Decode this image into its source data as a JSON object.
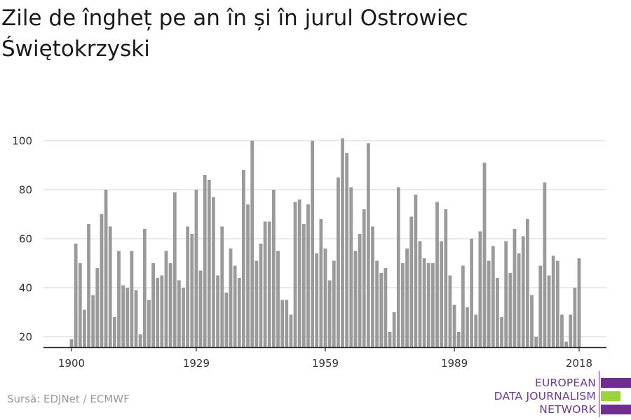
{
  "title": "Zile de îngheț pe an în și în jurul Ostrowiec Świętokrzyski",
  "source": "Sursă: EDJNet / ECMWF",
  "logo": {
    "line1": "EUROPEAN",
    "line2": "DATA JOURNALISM",
    "line3": "NETWORK"
  },
  "colors": {
    "bar": "#9a9a9a",
    "grid": "#dddddd",
    "axis": "#222222",
    "logo_purple": "#6f2c91",
    "logo_green": "#9cd33a"
  },
  "chart_data": {
    "type": "bar",
    "title": "Zile de îngheț pe an în și în jurul Ostrowiec Świętokrzyski",
    "xlabel": "",
    "ylabel": "",
    "ylim": [
      15,
      104
    ],
    "yticks": [
      20,
      40,
      60,
      80,
      100
    ],
    "xticks": [
      1900,
      1929,
      1959,
      1989,
      2018
    ],
    "grid": true,
    "x": [
      1900,
      1901,
      1902,
      1903,
      1904,
      1905,
      1906,
      1907,
      1908,
      1909,
      1910,
      1911,
      1912,
      1913,
      1914,
      1915,
      1916,
      1917,
      1918,
      1919,
      1920,
      1921,
      1922,
      1923,
      1924,
      1925,
      1926,
      1927,
      1928,
      1929,
      1930,
      1931,
      1932,
      1933,
      1934,
      1935,
      1936,
      1937,
      1938,
      1939,
      1940,
      1941,
      1942,
      1943,
      1944,
      1945,
      1946,
      1947,
      1948,
      1949,
      1950,
      1951,
      1952,
      1953,
      1954,
      1955,
      1956,
      1957,
      1958,
      1959,
      1960,
      1961,
      1962,
      1963,
      1964,
      1965,
      1966,
      1967,
      1968,
      1969,
      1970,
      1971,
      1972,
      1973,
      1974,
      1975,
      1976,
      1977,
      1978,
      1979,
      1980,
      1981,
      1982,
      1983,
      1984,
      1985,
      1986,
      1987,
      1988,
      1989,
      1990,
      1991,
      1992,
      1993,
      1994,
      1995,
      1996,
      1997,
      1998,
      1999,
      2000,
      2001,
      2002,
      2003,
      2004,
      2005,
      2006,
      2007,
      2008,
      2009,
      2010,
      2011,
      2012,
      2013,
      2014,
      2015,
      2016,
      2017,
      2018
    ],
    "values": [
      19,
      58,
      50,
      31,
      66,
      37,
      48,
      70,
      80,
      65,
      28,
      55,
      41,
      40,
      55,
      39,
      21,
      64,
      35,
      50,
      44,
      45,
      55,
      50,
      79,
      43,
      40,
      65,
      62,
      80,
      47,
      86,
      84,
      77,
      45,
      65,
      38,
      56,
      49,
      44,
      88,
      74,
      100,
      51,
      58,
      67,
      67,
      80,
      55,
      35,
      35,
      29,
      75,
      76,
      66,
      74,
      100,
      54,
      68,
      56,
      43,
      51,
      85,
      101,
      95,
      81,
      55,
      62,
      72,
      99,
      65,
      51,
      46,
      48,
      22,
      30,
      81,
      50,
      56,
      69,
      78,
      59,
      52,
      50,
      50,
      75,
      59,
      72,
      45,
      33,
      22,
      49,
      32,
      60,
      29,
      63,
      91,
      51,
      57,
      44,
      28,
      59,
      46,
      64,
      54,
      61,
      68,
      37,
      20,
      49,
      83,
      45,
      53,
      51,
      29,
      18,
      29,
      40,
      52
    ]
  }
}
